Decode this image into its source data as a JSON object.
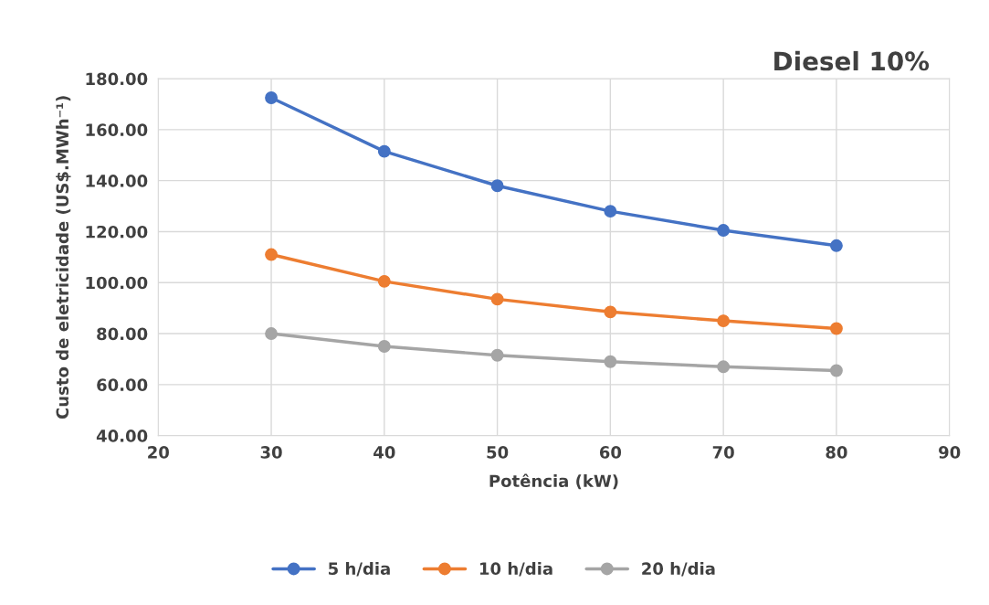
{
  "chart_data": {
    "type": "line",
    "title": "Diesel 10%",
    "xlabel": "Potência (kW)",
    "ylabel": "Custo de eletricidade (US$.MWh⁻¹)",
    "x": [
      30,
      40,
      50,
      60,
      70,
      80
    ],
    "series": [
      {
        "name": "5 h/dia",
        "color": "#4472c4",
        "values": [
          172.5,
          151.5,
          138.0,
          128.0,
          120.5,
          114.5
        ]
      },
      {
        "name": "10 h/dia",
        "color": "#ed7d31",
        "values": [
          111.0,
          100.5,
          93.5,
          88.5,
          85.0,
          82.0
        ]
      },
      {
        "name": "20 h/dia",
        "color": "#a5a5a5",
        "values": [
          80.0,
          75.0,
          71.5,
          69.0,
          67.0,
          65.5
        ]
      }
    ],
    "xlim": [
      20,
      90
    ],
    "xticks": [
      20,
      30,
      40,
      50,
      60,
      70,
      80,
      90
    ],
    "ylim": [
      40,
      180
    ],
    "yticks": [
      {
        "value": 40,
        "label": "40.00"
      },
      {
        "value": 60,
        "label": "60.00"
      },
      {
        "value": 80,
        "label": "80.00"
      },
      {
        "value": 100,
        "label": "100.00"
      },
      {
        "value": 120,
        "label": "120.00"
      },
      {
        "value": 140,
        "label": "140.00"
      },
      {
        "value": 160,
        "label": "160.00"
      },
      {
        "value": 180,
        "label": "180.00"
      }
    ],
    "grid": true,
    "legend": "bottom",
    "marker": "circle",
    "line_style": "solid"
  }
}
